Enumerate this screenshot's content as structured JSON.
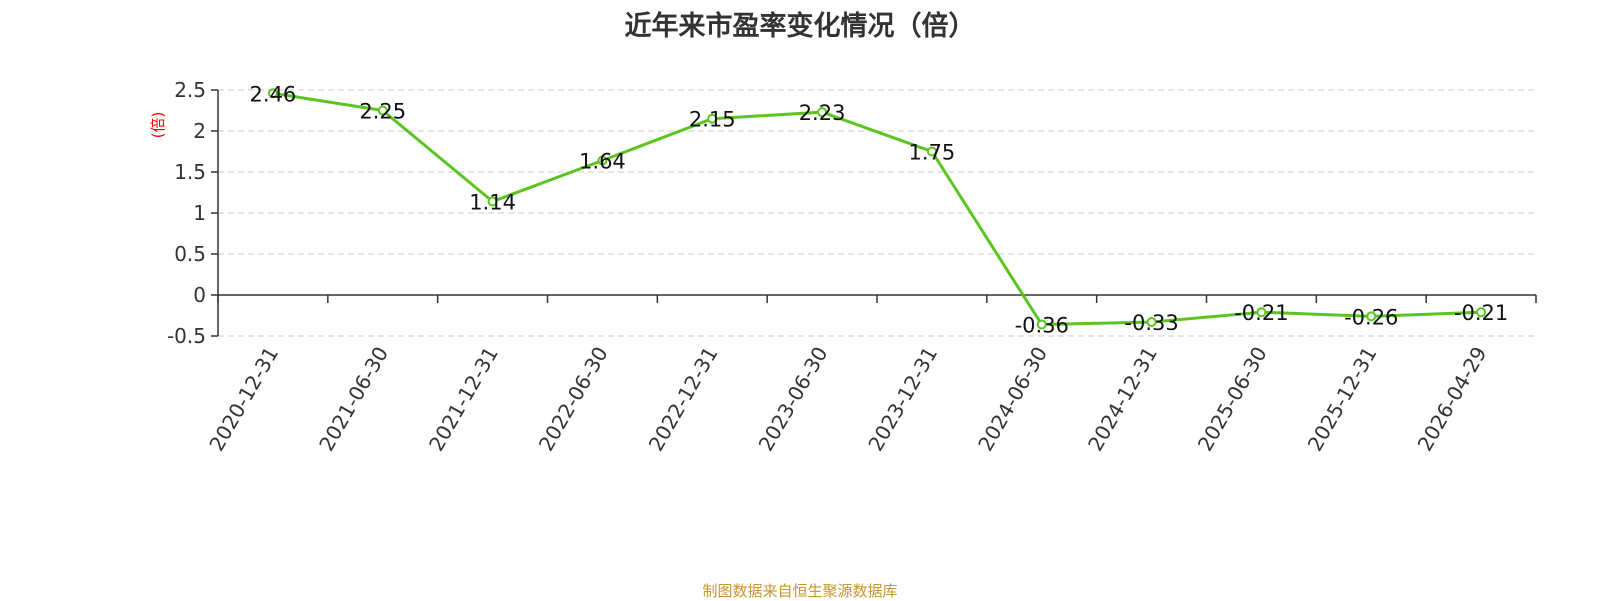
{
  "title": "近年来市盈率变化情况（倍）",
  "footer": "制图数据来自恒生聚源数据库",
  "chart_data": {
    "type": "line",
    "title": "近年来市盈率变化情况（倍）",
    "ylabel": "(倍)",
    "xlabel": "",
    "categories": [
      "2020-12-31",
      "2021-06-30",
      "2021-12-31",
      "2022-06-30",
      "2022-12-31",
      "2023-06-30",
      "2023-12-31",
      "2024-06-30",
      "2024-12-31",
      "2025-06-30",
      "2025-12-31",
      "2026-04-29"
    ],
    "values": [
      2.46,
      2.25,
      1.14,
      1.64,
      2.15,
      2.23,
      1.75,
      -0.36,
      -0.33,
      -0.21,
      -0.26,
      -0.21
    ],
    "data_labels": [
      "2.46",
      "2.25",
      "1.14",
      "1.64",
      "2.15",
      "2.23",
      "1.75",
      "-0.36",
      "-0.33",
      "-0.21",
      "-0.26",
      "-0.21"
    ],
    "ylim": [
      -0.5,
      2.5
    ],
    "yticks": [
      "-0.5",
      "0",
      "0.5",
      "1",
      "1.5",
      "2",
      "2.5"
    ],
    "grid": true,
    "line_color": "#5cc41e",
    "grid_color": "#cccccc",
    "unit_color": "#ff0000",
    "footer_color": "#c8962c"
  }
}
